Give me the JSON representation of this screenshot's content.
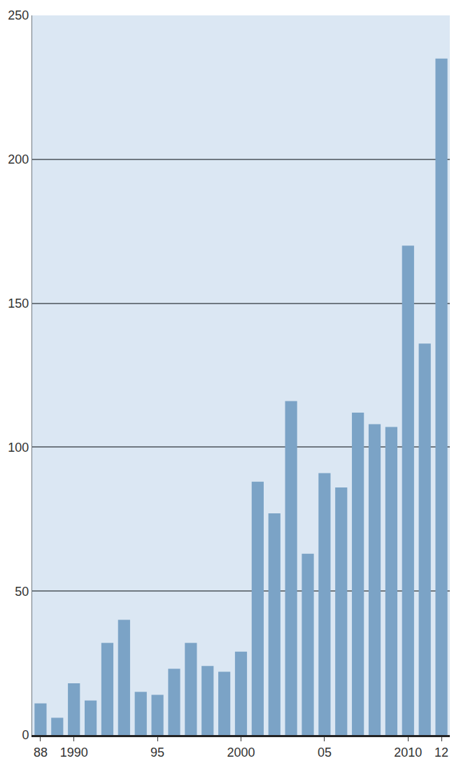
{
  "chart_data": {
    "type": "bar",
    "categories": [
      "88",
      null,
      "1990",
      null,
      null,
      null,
      null,
      "95",
      null,
      null,
      null,
      null,
      "2000",
      null,
      null,
      null,
      null,
      "05",
      null,
      null,
      null,
      null,
      "2010",
      null,
      "12"
    ],
    "values": [
      11,
      6,
      18,
      12,
      32,
      40,
      15,
      14,
      23,
      32,
      24,
      22,
      29,
      88,
      77,
      116,
      63,
      91,
      86,
      112,
      108,
      107,
      170,
      136,
      235
    ],
    "color": "#7ba3c6",
    "ylim": [
      0,
      250
    ],
    "yticks": [
      0,
      50,
      100,
      150,
      200,
      250
    ],
    "grid": true
  }
}
